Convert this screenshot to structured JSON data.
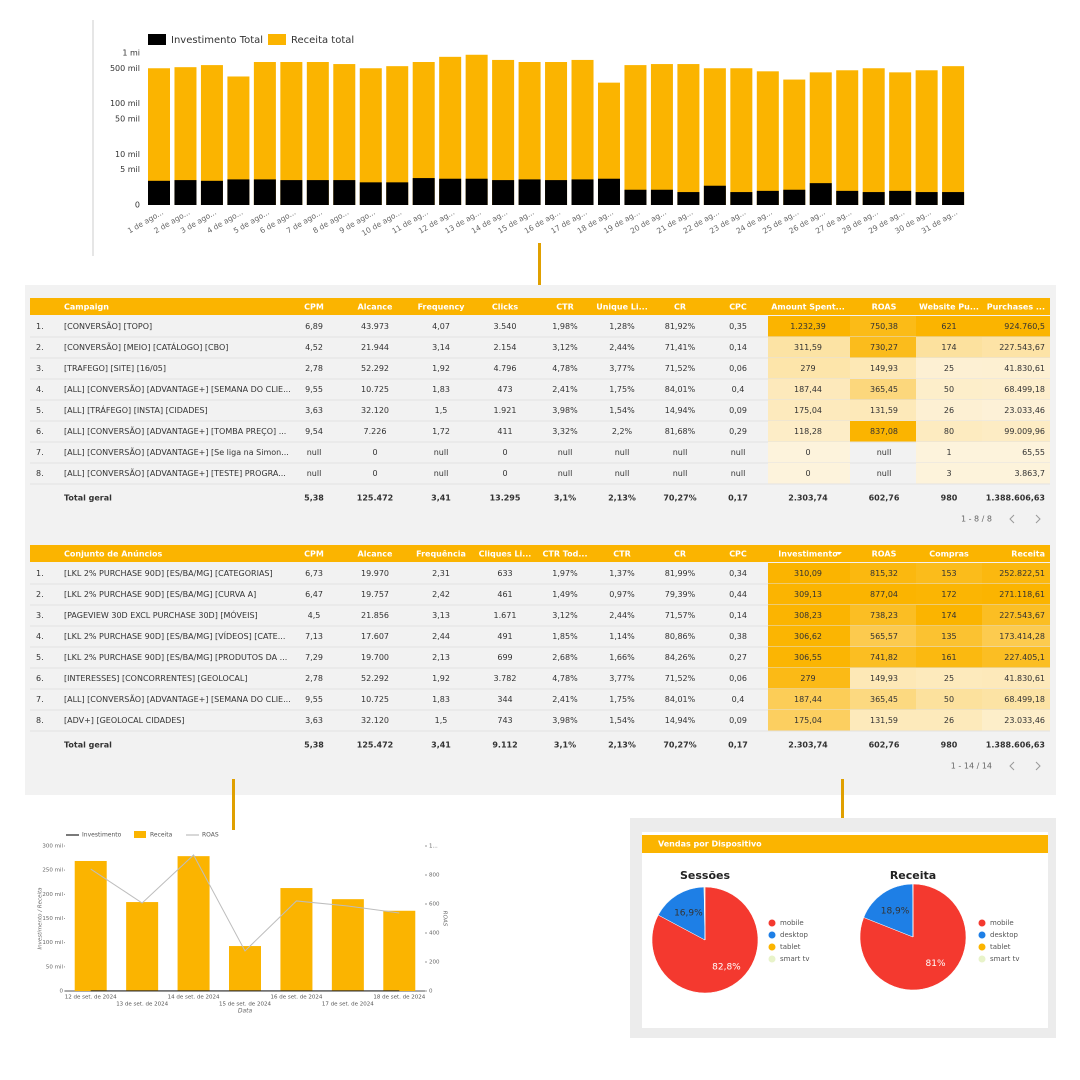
{
  "chart_data": [
    {
      "type": "bar",
      "log_scale": true,
      "grid": false,
      "categories": [
        "1 de ago...",
        "2 de ago...",
        "3 de ago...",
        "4 de ago...",
        "5 de ago...",
        "6 de ago...",
        "7 de ago...",
        "8 de ago...",
        "9 de ago...",
        "10 de ago...",
        "11 de ag...",
        "12 de ag...",
        "13 de ag...",
        "14 de ag...",
        "15 de ag...",
        "16 de ag...",
        "17 de ag...",
        "18 de ag...",
        "19 de ag...",
        "20 de ag...",
        "21 de ag...",
        "22 de ag...",
        "23 de ag...",
        "24 de ag...",
        "25 de ag...",
        "26 de ag...",
        "27 de ag...",
        "28 de ag...",
        "29 de ag...",
        "30 de ag...",
        "31 de ag..."
      ],
      "series": [
        {
          "name": "Receita total",
          "color": "#fbb400",
          "values": [
            500000,
            525000,
            577000,
            344000,
            664000,
            664000,
            664000,
            605000,
            500000,
            550000,
            664000,
            840000,
            923000,
            730000,
            664000,
            664000,
            730000,
            260000,
            577000,
            605000,
            605000,
            500000,
            500000,
            435000,
            299000,
            415000,
            456000,
            500000,
            415000,
            456000,
            550000
          ]
        },
        {
          "name": "Investimento Total",
          "color": "#000000",
          "values": [
            3000,
            3100,
            3000,
            3200,
            3200,
            3100,
            3100,
            3100,
            2800,
            2800,
            3400,
            3300,
            3300,
            3100,
            3200,
            3100,
            3200,
            3300,
            2000,
            2000,
            1800,
            2400,
            1800,
            1900,
            2000,
            2700,
            1900,
            1800,
            1900,
            1800,
            1800
          ]
        }
      ],
      "ylim": [
        1000,
        1000000
      ],
      "yticks": [
        0,
        {
          "value": 5000,
          "label": "5 mil"
        },
        {
          "value": 10000,
          "label": "10 mil"
        },
        {
          "value": 50000,
          "label": "50 mil"
        },
        {
          "value": 100000,
          "label": "100 mil"
        },
        {
          "value": 500000,
          "label": "500 mil"
        },
        {
          "value": 1000000,
          "label": "1 mi"
        }
      ]
    },
    {
      "type": "combo",
      "x_label": "Data",
      "y_label": "Investimento / Receita",
      "y2_label": "ROAS",
      "categories": [
        "12 de set. de 2024",
        "13 de set. de 2024",
        "14 de set. de 2024",
        "15 de set. de 2024",
        "16 de set. de 2024",
        "17 de set. de 2024",
        "18 de set. de 2024"
      ],
      "series": [
        {
          "name": "Investimento",
          "color": "#222222",
          "kind": "line",
          "values": [
            310,
            305,
            298,
            312,
            309,
            306,
            300
          ]
        },
        {
          "name": "Receita",
          "color": "#fbb400",
          "kind": "bar",
          "values": [
            269000,
            184000,
            279000,
            93000,
            213000,
            190000,
            166000
          ]
        },
        {
          "name": "ROAS",
          "color": "#bdbdbd",
          "kind": "line",
          "axis": "y2",
          "values": [
            841,
            607,
            938,
            276,
            621,
            586,
            538
          ]
        }
      ],
      "ylim": [
        0,
        300000
      ],
      "yticks": [
        0,
        {
          "value": 50000,
          "label": "50 mil"
        },
        {
          "value": 100000,
          "label": "100 mil"
        },
        {
          "value": 150000,
          "label": "150 mil"
        },
        {
          "value": 200000,
          "label": "200 mil"
        },
        {
          "value": 250000,
          "label": "250 mil"
        },
        {
          "value": 300000,
          "label": "300 mil"
        }
      ],
      "y2lim": [
        0,
        1000
      ],
      "y2ticks": [
        0,
        200,
        400,
        600,
        800,
        {
          "value": 1000,
          "label": "1..."
        }
      ]
    },
    {
      "type": "pie",
      "title": "Sessões",
      "categories": [
        "mobile",
        "desktop",
        "tablet",
        "smart tv"
      ],
      "colors": [
        "#f4392f",
        "#1e7fe6",
        "#fbb400",
        "#e8f3c9"
      ],
      "values": [
        82.8,
        16.9,
        0.2,
        0.1
      ],
      "value_labels": [
        "82,8%",
        "16,9%",
        null,
        null
      ]
    },
    {
      "type": "pie",
      "title": "Receita",
      "categories": [
        "mobile",
        "desktop",
        "tablet",
        "smart tv"
      ],
      "colors": [
        "#f4392f",
        "#1e7fe6",
        "#fbb400",
        "#e8f3c9"
      ],
      "values": [
        81,
        18.9,
        0.1,
        0
      ],
      "value_labels": [
        "81%",
        "18,9%",
        null,
        null
      ]
    }
  ],
  "device_panel": {
    "title": "Vendas por Dispositivo"
  },
  "tables": [
    {
      "headers": [
        "Campaign",
        "CPM",
        "Alcance",
        "Frequency",
        "Clicks",
        "CTR",
        "Unique Li...",
        "CR",
        "CPC",
        "Amount Spent...",
        "ROAS",
        "Website Pu...",
        "Purchases ..."
      ],
      "rows": [
        [
          "1.",
          "[CONVERSÃO] [TOPO]",
          "6,89",
          "43.973",
          "4,07",
          "3.540",
          "1,98%",
          "1,28%",
          "81,92%",
          "0,35",
          "1.232,39",
          "750,38",
          "621",
          "924.760,5"
        ],
        [
          "2.",
          "[CONVERSÃO] [MEIO] [CATÁLOGO] [CBO]",
          "4,52",
          "21.944",
          "3,14",
          "2.154",
          "3,12%",
          "2,44%",
          "71,41%",
          "0,14",
          "311,59",
          "730,27",
          "174",
          "227.543,67"
        ],
        [
          "3.",
          "[TRAFEGO] [SITE] [16/05]",
          "2,78",
          "52.292",
          "1,92",
          "4.796",
          "4,78%",
          "3,77%",
          "71,52%",
          "0,06",
          "279",
          "149,93",
          "25",
          "41.830,61"
        ],
        [
          "4.",
          "[ALL] [CONVERSÃO] [ADVANTAGE+] [SEMANA DO CLIE...",
          "9,55",
          "10.725",
          "1,83",
          "473",
          "2,41%",
          "1,75%",
          "84,01%",
          "0,4",
          "187,44",
          "365,45",
          "50",
          "68.499,18"
        ],
        [
          "5.",
          "[ALL] [TRÁFEGO] [INSTA] [CIDADES]",
          "3,63",
          "32.120",
          "1,5",
          "1.921",
          "3,98%",
          "1,54%",
          "14,94%",
          "0,09",
          "175,04",
          "131,59",
          "26",
          "23.033,46"
        ],
        [
          "6.",
          "[ALL] [CONVERSÃO] [ADVANTAGE+] [TOMBA PREÇO] ...",
          "9,54",
          "7.226",
          "1,72",
          "411",
          "3,32%",
          "2,2%",
          "81,68%",
          "0,29",
          "118,28",
          "837,08",
          "80",
          "99.009,96"
        ],
        [
          "7.",
          "[ALL] [CONVERSÃO] [ADVANTAGE+] [Se liga na Simon...",
          "null",
          "0",
          "null",
          "0",
          "null",
          "null",
          "null",
          "null",
          "0",
          "null",
          "1",
          "65,55"
        ],
        [
          "8.",
          "[ALL] [CONVERSÃO] [ADVANTAGE+] [TESTE] PROGRA...",
          "null",
          "0",
          "null",
          "0",
          "null",
          "null",
          "null",
          "null",
          "0",
          "null",
          "3",
          "3.863,7"
        ]
      ],
      "total": [
        "Total geral",
        "5,38",
        "125.472",
        "3,41",
        "13.295",
        "3,1%",
        "2,13%",
        "70,27%",
        "0,17",
        "2.303,74",
        "602,76",
        "980",
        "1.388.606,63"
      ],
      "pagination": "1 - 8 / 8"
    },
    {
      "headers": [
        "Conjunto de Anúncios",
        "CPM",
        "Alcance",
        "Frequência",
        "Cliques Li...",
        "CTR Tod...",
        "CTR",
        "CR",
        "CPC",
        "Investimento",
        "ROAS",
        "Compras",
        "Receita"
      ],
      "rows": [
        [
          "1.",
          "[LKL 2% PURCHASE 90D] [ES/BA/MG] [CATEGORIAS]",
          "6,73",
          "19.970",
          "2,31",
          "633",
          "1,97%",
          "1,37%",
          "81,99%",
          "0,34",
          "310,09",
          "815,32",
          "153",
          "252.822,51"
        ],
        [
          "2.",
          "[LKL 2% PURCHASE 90D] [ES/BA/MG] [CURVA A]",
          "6,47",
          "19.757",
          "2,42",
          "461",
          "1,49%",
          "0,97%",
          "79,39%",
          "0,44",
          "309,13",
          "877,04",
          "172",
          "271.118,61"
        ],
        [
          "3.",
          "[PAGEVIEW 30D EXCL PURCHASE 30D] [MÓVEIS]",
          "4,5",
          "21.856",
          "3,13",
          "1.671",
          "3,12%",
          "2,44%",
          "71,57%",
          "0,14",
          "308,23",
          "738,23",
          "174",
          "227.543,67"
        ],
        [
          "4.",
          "[LKL 2% PURCHASE 90D] [ES/BA/MG] [VÍDEOS] [CATE...",
          "7,13",
          "17.607",
          "2,44",
          "491",
          "1,85%",
          "1,14%",
          "80,86%",
          "0,38",
          "306,62",
          "565,57",
          "135",
          "173.414,28"
        ],
        [
          "5.",
          "[LKL 2% PURCHASE 90D] [ES/BA/MG] [PRODUTOS DA ...",
          "7,29",
          "19.700",
          "2,13",
          "699",
          "2,68%",
          "1,66%",
          "84,26%",
          "0,27",
          "306,55",
          "741,82",
          "161",
          "227.405,1"
        ],
        [
          "6.",
          "[INTERESSES] [CONCORRENTES] [GEOLOCAL]",
          "2,78",
          "52.292",
          "1,92",
          "3.782",
          "4,78%",
          "3,77%",
          "71,52%",
          "0,06",
          "279",
          "149,93",
          "25",
          "41.830,61"
        ],
        [
          "7.",
          "[ALL] [CONVERSÃO] [ADVANTAGE+] [SEMANA DO CLIE...",
          "9,55",
          "10.725",
          "1,83",
          "344",
          "2,41%",
          "1,75%",
          "84,01%",
          "0,4",
          "187,44",
          "365,45",
          "50",
          "68.499,18"
        ],
        [
          "8.",
          "[ADV+] [GEOLOCAL CIDADES]",
          "3,63",
          "32.120",
          "1,5",
          "743",
          "3,98%",
          "1,54%",
          "14,94%",
          "0,09",
          "175,04",
          "131,59",
          "26",
          "23.033,46"
        ]
      ],
      "total": [
        "Total geral",
        "5,38",
        "125.472",
        "3,41",
        "9.112",
        "3,1%",
        "2,13%",
        "70,27%",
        "0,17",
        "2.303,74",
        "602,76",
        "980",
        "1.388.606,63"
      ],
      "pagination": "1 - 14 / 14"
    }
  ]
}
